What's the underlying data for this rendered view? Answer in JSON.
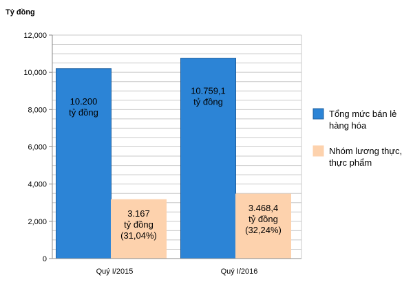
{
  "chart_data": {
    "type": "bar",
    "ylabel": "Tỷ đồng",
    "ylim": [
      0,
      12000
    ],
    "yticks": [
      "0",
      "2,000",
      "4,000",
      "6,000",
      "8,000",
      "10,000",
      "12,000"
    ],
    "ytick_values": [
      0,
      2000,
      4000,
      6000,
      8000,
      10000,
      12000
    ],
    "grid": true,
    "legend_position": "right",
    "categories": [
      "Quý I/2015",
      "Quý I/2016"
    ],
    "series": [
      {
        "name": "Tổng mức bán lẻ hàng hóa",
        "legend_lines": [
          "Tổng mức bán lẻ",
          "hàng hóa"
        ],
        "color": "#2c84d6",
        "stroke": "#1f5f9e",
        "values": [
          10200,
          10759.1
        ],
        "labels": [
          [
            "10.200",
            "tỷ đồng"
          ],
          [
            "10.759,1",
            "tỷ đồng"
          ]
        ]
      },
      {
        "name": "Nhóm lương thực, thực phẩm",
        "legend_lines": [
          "Nhóm lương thực,",
          "thực phẩm"
        ],
        "color": "#fdd2ad",
        "stroke": "#fdd2ad",
        "values": [
          3167,
          3468.4
        ],
        "labels": [
          [
            "3.167",
            "tỷ đồng",
            "(31,04%)"
          ],
          [
            "3.468,4",
            "tỷ đồng",
            "(32,24%)"
          ]
        ]
      }
    ]
  }
}
